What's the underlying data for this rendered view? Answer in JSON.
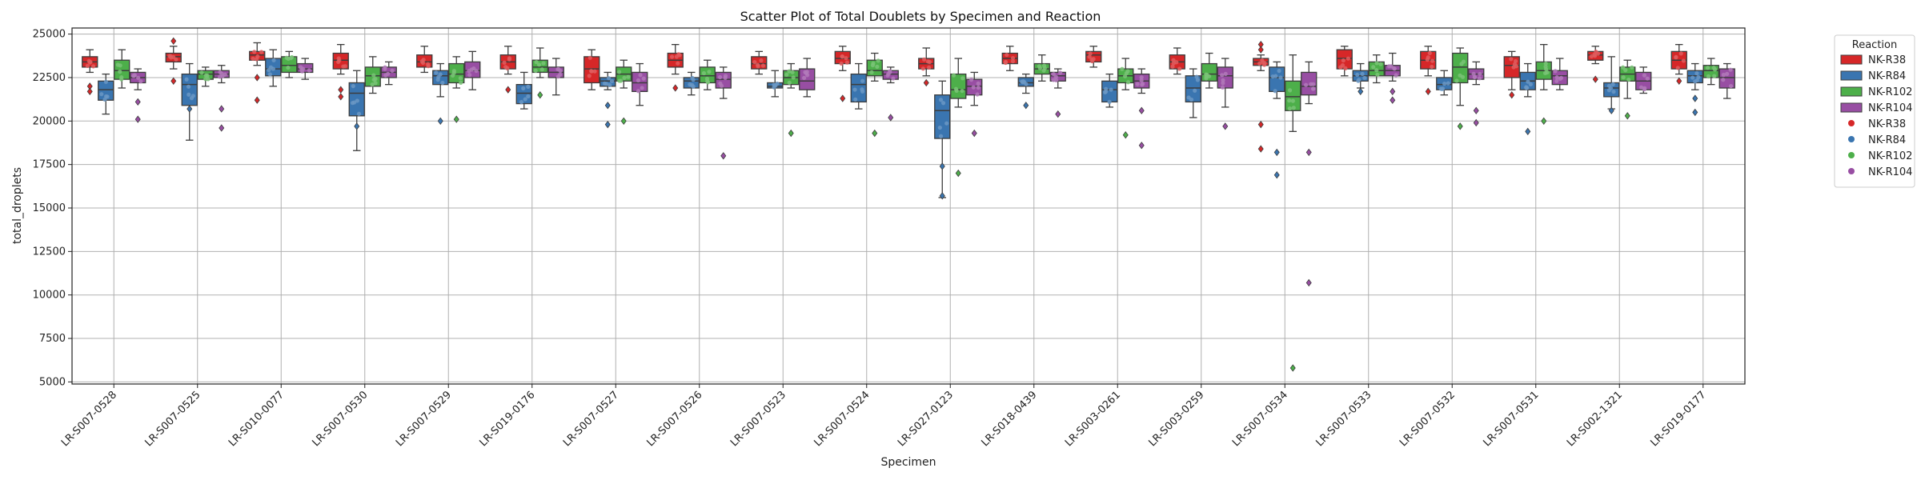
{
  "chart_data": {
    "type": "box",
    "title": "Scatter Plot of Total Doublets by Specimen and Reaction",
    "xlabel": "Specimen",
    "ylabel": "total_droplets",
    "ylim": [
      5000,
      25000
    ],
    "yticks": [
      5000,
      7500,
      10000,
      12500,
      15000,
      17500,
      20000,
      22500,
      25000
    ],
    "grid": true,
    "legend": {
      "title": "Reaction",
      "placement": "outside-top-right",
      "box_entries": [
        "NK-R38",
        "NK-R84",
        "NK-R102",
        "NK-R104"
      ],
      "point_entries": [
        "NK-R38",
        "NK-R84",
        "NK-R102",
        "NK-R104"
      ]
    },
    "colors": {
      "NK-R38": "#d62728",
      "NK-R84": "#3a75b0",
      "NK-R102": "#4daf4a",
      "NK-R104": "#984ea3"
    },
    "categories": [
      "LR-S007-0528",
      "LR-S007-0525",
      "LR-S010-0077",
      "LR-S007-0530",
      "LR-S007-0529",
      "LR-S019-0176",
      "LR-S007-0527",
      "LR-S007-0526",
      "LR-S007-0523",
      "LR-S007-0524",
      "LR-S027-0123",
      "LR-S018-0439",
      "LR-S003-0261",
      "LR-S003-0259",
      "LR-S007-0534",
      "LR-S007-0533",
      "LR-S007-0532",
      "LR-S007-0531",
      "LR-S002-1321",
      "LR-S019-0177"
    ],
    "series": [
      {
        "name": "NK-R38",
        "stats": [
          {
            "min": 22800,
            "q1": 23100,
            "median": 23400,
            "q3": 23700,
            "max": 24100,
            "outliers": [
              22000,
              21700
            ]
          },
          {
            "min": 23000,
            "q1": 23400,
            "median": 23700,
            "q3": 23900,
            "max": 24300,
            "outliers": [
              24600,
              22300
            ]
          },
          {
            "min": 23200,
            "q1": 23500,
            "median": 23800,
            "q3": 24000,
            "max": 24500,
            "outliers": [
              22500,
              21200
            ]
          },
          {
            "min": 22700,
            "q1": 23000,
            "median": 23500,
            "q3": 23900,
            "max": 24400,
            "outliers": [
              21800,
              21400
            ]
          },
          {
            "min": 22800,
            "q1": 23100,
            "median": 23400,
            "q3": 23800,
            "max": 24300,
            "outliers": []
          },
          {
            "min": 22700,
            "q1": 23000,
            "median": 23400,
            "q3": 23800,
            "max": 24300,
            "outliers": [
              21800
            ]
          },
          {
            "min": 21800,
            "q1": 22200,
            "median": 23000,
            "q3": 23700,
            "max": 24100,
            "outliers": []
          },
          {
            "min": 22700,
            "q1": 23100,
            "median": 23500,
            "q3": 23900,
            "max": 24400,
            "outliers": [
              21900
            ]
          },
          {
            "min": 22700,
            "q1": 23000,
            "median": 23300,
            "q3": 23700,
            "max": 24000,
            "outliers": []
          },
          {
            "min": 22900,
            "q1": 23300,
            "median": 23600,
            "q3": 24000,
            "max": 24300,
            "outliers": [
              21300
            ]
          },
          {
            "min": 22600,
            "q1": 23000,
            "median": 23300,
            "q3": 23600,
            "max": 24200,
            "outliers": [
              22200
            ]
          },
          {
            "min": 22900,
            "q1": 23300,
            "median": 23600,
            "q3": 23900,
            "max": 24300,
            "outliers": []
          },
          {
            "min": 23100,
            "q1": 23400,
            "median": 23800,
            "q3": 24000,
            "max": 24300,
            "outliers": []
          },
          {
            "min": 22700,
            "q1": 23000,
            "median": 23400,
            "q3": 23800,
            "max": 24200,
            "outliers": []
          },
          {
            "min": 22900,
            "q1": 23200,
            "median": 23400,
            "q3": 23600,
            "max": 23800,
            "outliers": [
              24400,
              24100,
              19800,
              18400
            ]
          },
          {
            "min": 22600,
            "q1": 23000,
            "median": 23600,
            "q3": 24100,
            "max": 24300,
            "outliers": []
          },
          {
            "min": 22600,
            "q1": 23000,
            "median": 23500,
            "q3": 24000,
            "max": 24300,
            "outliers": [
              21700
            ]
          },
          {
            "min": 21800,
            "q1": 22500,
            "median": 23200,
            "q3": 23700,
            "max": 24000,
            "outliers": [
              21500
            ]
          },
          {
            "min": 23300,
            "q1": 23500,
            "median": 23800,
            "q3": 24000,
            "max": 24300,
            "outliers": [
              22400
            ]
          },
          {
            "min": 22700,
            "q1": 23000,
            "median": 23500,
            "q3": 24000,
            "max": 24400,
            "outliers": [
              22300
            ]
          }
        ]
      },
      {
        "name": "NK-R84",
        "stats": [
          {
            "min": 20400,
            "q1": 21200,
            "median": 21800,
            "q3": 22300,
            "max": 22700,
            "outliers": []
          },
          {
            "min": 18900,
            "q1": 20900,
            "median": 22100,
            "q3": 22700,
            "max": 23300,
            "outliers": [
              20700
            ]
          },
          {
            "min": 22000,
            "q1": 22600,
            "median": 23000,
            "q3": 23600,
            "max": 24100,
            "outliers": []
          },
          {
            "min": 18300,
            "q1": 20300,
            "median": 21600,
            "q3": 22200,
            "max": 22900,
            "outliers": [
              19700
            ]
          },
          {
            "min": 21400,
            "q1": 22100,
            "median": 22600,
            "q3": 22900,
            "max": 23300,
            "outliers": [
              20000
            ]
          },
          {
            "min": 20700,
            "q1": 21000,
            "median": 21600,
            "q3": 22100,
            "max": 22800,
            "outliers": []
          },
          {
            "min": 21800,
            "q1": 22000,
            "median": 22300,
            "q3": 22500,
            "max": 22800,
            "outliers": [
              20900,
              19800
            ]
          },
          {
            "min": 21500,
            "q1": 21900,
            "median": 22300,
            "q3": 22500,
            "max": 22800,
            "outliers": []
          },
          {
            "min": 21400,
            "q1": 21900,
            "median": 22000,
            "q3": 22200,
            "max": 22900,
            "outliers": []
          },
          {
            "min": 20700,
            "q1": 21100,
            "median": 22100,
            "q3": 22700,
            "max": 23300,
            "outliers": []
          },
          {
            "min": 15600,
            "q1": 19000,
            "median": 20600,
            "q3": 21500,
            "max": 22300,
            "outliers": [
              17400,
              15700
            ]
          },
          {
            "min": 21600,
            "q1": 22000,
            "median": 22200,
            "q3": 22500,
            "max": 22700,
            "outliers": [
              20900
            ]
          },
          {
            "min": 20800,
            "q1": 21100,
            "median": 21800,
            "q3": 22300,
            "max": 22700,
            "outliers": []
          },
          {
            "min": 20200,
            "q1": 21100,
            "median": 21900,
            "q3": 22600,
            "max": 23000,
            "outliers": []
          },
          {
            "min": 21300,
            "q1": 21700,
            "median": 22500,
            "q3": 23100,
            "max": 23400,
            "outliers": [
              18200,
              16900
            ]
          },
          {
            "min": 21900,
            "q1": 22300,
            "median": 22600,
            "q3": 22900,
            "max": 23300,
            "outliers": [
              21700
            ]
          },
          {
            "min": 21500,
            "q1": 21800,
            "median": 22100,
            "q3": 22500,
            "max": 22900,
            "outliers": []
          },
          {
            "min": 21400,
            "q1": 21800,
            "median": 22300,
            "q3": 22800,
            "max": 23300,
            "outliers": [
              19400
            ]
          },
          {
            "min": 20700,
            "q1": 21400,
            "median": 21900,
            "q3": 22200,
            "max": 23700,
            "outliers": [
              20600
            ]
          },
          {
            "min": 21800,
            "q1": 22200,
            "median": 22600,
            "q3": 22900,
            "max": 23300,
            "outliers": [
              21300,
              20500
            ]
          }
        ]
      },
      {
        "name": "NK-R102",
        "stats": [
          {
            "min": 21900,
            "q1": 22400,
            "median": 22900,
            "q3": 23500,
            "max": 24100,
            "outliers": []
          },
          {
            "min": 22000,
            "q1": 22400,
            "median": 22700,
            "q3": 22900,
            "max": 23100,
            "outliers": []
          },
          {
            "min": 22500,
            "q1": 22800,
            "median": 23200,
            "q3": 23700,
            "max": 24000,
            "outliers": []
          },
          {
            "min": 21600,
            "q1": 22000,
            "median": 22600,
            "q3": 23100,
            "max": 23700,
            "outliers": []
          },
          {
            "min": 21900,
            "q1": 22200,
            "median": 22700,
            "q3": 23300,
            "max": 23700,
            "outliers": [
              20100
            ]
          },
          {
            "min": 22500,
            "q1": 22800,
            "median": 23100,
            "q3": 23500,
            "max": 24200,
            "outliers": [
              21500
            ]
          },
          {
            "min": 21900,
            "q1": 22300,
            "median": 22700,
            "q3": 23100,
            "max": 23500,
            "outliers": [
              20000
            ]
          },
          {
            "min": 21800,
            "q1": 22200,
            "median": 22600,
            "q3": 23100,
            "max": 23500,
            "outliers": []
          },
          {
            "min": 21900,
            "q1": 22100,
            "median": 22500,
            "q3": 22900,
            "max": 23300,
            "outliers": [
              19300
            ]
          },
          {
            "min": 22300,
            "q1": 22600,
            "median": 22900,
            "q3": 23500,
            "max": 23900,
            "outliers": [
              19300
            ]
          },
          {
            "min": 20800,
            "q1": 21300,
            "median": 21800,
            "q3": 22700,
            "max": 23600,
            "outliers": [
              17000
            ]
          },
          {
            "min": 22300,
            "q1": 22700,
            "median": 23000,
            "q3": 23300,
            "max": 23800,
            "outliers": []
          },
          {
            "min": 21800,
            "q1": 22200,
            "median": 22600,
            "q3": 23000,
            "max": 23600,
            "outliers": [
              19200
            ]
          },
          {
            "min": 21900,
            "q1": 22300,
            "median": 22700,
            "q3": 23300,
            "max": 23900,
            "outliers": []
          },
          {
            "min": 19400,
            "q1": 20600,
            "median": 21400,
            "q3": 22300,
            "max": 23800,
            "outliers": [
              5800
            ]
          },
          {
            "min": 22200,
            "q1": 22600,
            "median": 22900,
            "q3": 23400,
            "max": 23800,
            "outliers": []
          },
          {
            "min": 20900,
            "q1": 22200,
            "median": 23100,
            "q3": 23900,
            "max": 24200,
            "outliers": [
              19700
            ]
          },
          {
            "min": 21800,
            "q1": 22400,
            "median": 22900,
            "q3": 23400,
            "max": 24400,
            "outliers": [
              20000
            ]
          },
          {
            "min": 21300,
            "q1": 22300,
            "median": 22700,
            "q3": 23100,
            "max": 23500,
            "outliers": [
              20300
            ]
          },
          {
            "min": 22100,
            "q1": 22500,
            "median": 22900,
            "q3": 23200,
            "max": 23600,
            "outliers": []
          }
        ]
      },
      {
        "name": "NK-R104",
        "stats": [
          {
            "min": 21800,
            "q1": 22200,
            "median": 22500,
            "q3": 22800,
            "max": 23000,
            "outliers": [
              21100,
              20100
            ]
          },
          {
            "min": 22200,
            "q1": 22500,
            "median": 22700,
            "q3": 22900,
            "max": 23200,
            "outliers": [
              20700,
              19600
            ]
          },
          {
            "min": 22400,
            "q1": 22800,
            "median": 23000,
            "q3": 23300,
            "max": 23600,
            "outliers": []
          },
          {
            "min": 22100,
            "q1": 22500,
            "median": 22800,
            "q3": 23100,
            "max": 23400,
            "outliers": []
          },
          {
            "min": 21800,
            "q1": 22500,
            "median": 22900,
            "q3": 23400,
            "max": 24000,
            "outliers": []
          },
          {
            "min": 21500,
            "q1": 22500,
            "median": 22800,
            "q3": 23100,
            "max": 23600,
            "outliers": []
          },
          {
            "min": 20900,
            "q1": 21700,
            "median": 22200,
            "q3": 22800,
            "max": 23300,
            "outliers": []
          },
          {
            "min": 21300,
            "q1": 21900,
            "median": 22400,
            "q3": 22800,
            "max": 23100,
            "outliers": [
              18000
            ]
          },
          {
            "min": 21400,
            "q1": 21800,
            "median": 22300,
            "q3": 23000,
            "max": 23600,
            "outliers": []
          },
          {
            "min": 22200,
            "q1": 22400,
            "median": 22700,
            "q3": 22900,
            "max": 23100,
            "outliers": [
              20200
            ]
          },
          {
            "min": 20900,
            "q1": 21500,
            "median": 22000,
            "q3": 22400,
            "max": 22800,
            "outliers": [
              19300
            ]
          },
          {
            "min": 21900,
            "q1": 22300,
            "median": 22600,
            "q3": 22800,
            "max": 23000,
            "outliers": [
              20400
            ]
          },
          {
            "min": 21600,
            "q1": 21900,
            "median": 22300,
            "q3": 22700,
            "max": 23000,
            "outliers": [
              20600,
              18600
            ]
          },
          {
            "min": 20800,
            "q1": 21900,
            "median": 22600,
            "q3": 23100,
            "max": 23600,
            "outliers": [
              19700
            ]
          },
          {
            "min": 21000,
            "q1": 21500,
            "median": 22000,
            "q3": 22800,
            "max": 23400,
            "outliers": [
              18200,
              10700
            ]
          },
          {
            "min": 22300,
            "q1": 22600,
            "median": 22900,
            "q3": 23200,
            "max": 23900,
            "outliers": [
              21700,
              21200
            ]
          },
          {
            "min": 22100,
            "q1": 22400,
            "median": 22700,
            "q3": 23000,
            "max": 23400,
            "outliers": [
              20600,
              19900
            ]
          },
          {
            "min": 21800,
            "q1": 22100,
            "median": 22600,
            "q3": 22900,
            "max": 23600,
            "outliers": []
          },
          {
            "min": 21600,
            "q1": 21800,
            "median": 22300,
            "q3": 22800,
            "max": 23100,
            "outliers": []
          },
          {
            "min": 21300,
            "q1": 21900,
            "median": 22500,
            "q3": 23000,
            "max": 23300,
            "outliers": []
          }
        ]
      }
    ]
  }
}
